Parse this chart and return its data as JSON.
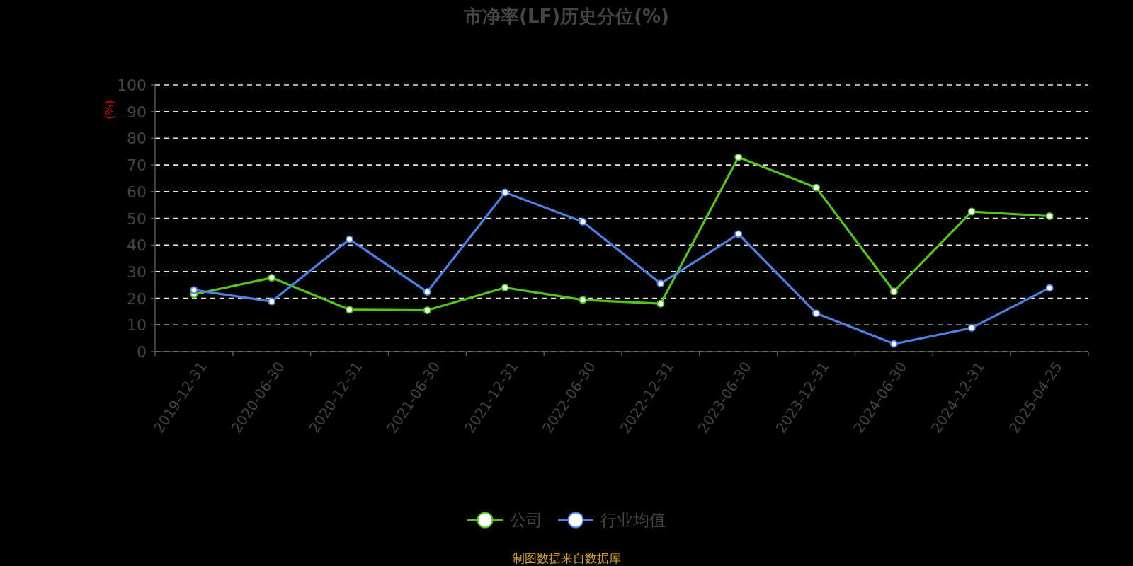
{
  "chart_data": {
    "type": "line",
    "title": "市净率(LF)历史分位(%)",
    "ylabel": "(%)",
    "categories": [
      "2019-12-31",
      "2020-06-30",
      "2020-12-31",
      "2021-06-30",
      "2021-12-31",
      "2022-06-30",
      "2022-12-31",
      "2023-06-30",
      "2023-12-31",
      "2024-06-30",
      "2024-12-31",
      "2025-04-25"
    ],
    "series": [
      {
        "name": "公司",
        "color": "#52c41a",
        "values": [
          21.5,
          27.7,
          15.7,
          15.5,
          24.0,
          19.4,
          18.0,
          72.9,
          61.5,
          22.6,
          52.5,
          50.8
        ]
      },
      {
        "name": "行业均值",
        "color": "#4d80e0",
        "values": [
          23.1,
          18.8,
          42.1,
          22.4,
          59.7,
          48.7,
          25.5,
          44.1,
          14.4,
          2.9,
          8.9,
          23.9
        ]
      }
    ],
    "ylim": [
      0,
      100
    ],
    "yticks": [
      0,
      10,
      20,
      30,
      40,
      50,
      60,
      70,
      80,
      90,
      100
    ],
    "grid": "y",
    "legend": "bottom",
    "marker": "circle",
    "line_style": "solid",
    "annotations": [
      "制图数据来自数据库"
    ]
  }
}
